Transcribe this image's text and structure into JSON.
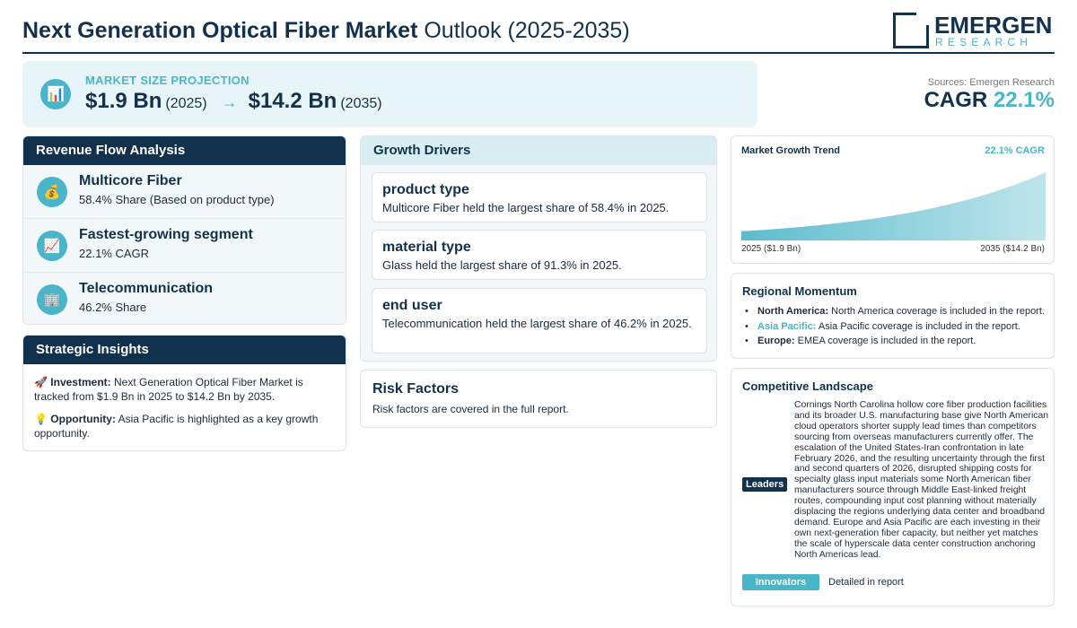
{
  "header": {
    "title_bold": "Next Generation Optical Fiber Market",
    "title_rest": " Outlook (2025-2035)",
    "logo_word": "EMERGEN",
    "logo_sub": "RESEARCH"
  },
  "hero": {
    "label": "MARKET SIZE PROJECTION",
    "icon": "bar-chart-icon",
    "start_value": "$1.9 Bn",
    "start_year": "(2025)",
    "arrow": "→",
    "end_value": "$14.2 Bn",
    "end_year": "(2035)"
  },
  "summary": {
    "sources": "Sources: Emergen Research",
    "cagr_label": "CAGR",
    "cagr_value": "22.1%"
  },
  "revenue_flow": {
    "title": "Revenue Flow Analysis",
    "items": [
      {
        "icon": "money-bag-icon",
        "glyph": "💰",
        "title": "Multicore Fiber",
        "subtitle": "58.4% Share (Based on product type)"
      },
      {
        "icon": "trend-up-icon",
        "glyph": "📈",
        "title": "Fastest-growing segment",
        "subtitle": "22.1% CAGR"
      },
      {
        "icon": "office-building-icon",
        "glyph": "🏢",
        "title": "Telecommunication",
        "subtitle": "46.2% Share"
      }
    ]
  },
  "strategic_insights": {
    "title": "Strategic Insights",
    "investment_label": "Investment:",
    "investment_text": " Next Generation Optical Fiber Market is tracked from $1.9 Bn in 2025 to $14.2 Bn by 2035.",
    "opportunity_label": "Opportunity:",
    "opportunity_text": " Asia Pacific is highlighted as a key growth opportunity."
  },
  "growth_drivers": {
    "title": "Growth Drivers",
    "items": [
      {
        "title": "product type",
        "text": "Multicore Fiber held the largest share of 58.4% in 2025."
      },
      {
        "title": "material type",
        "text": "Glass held the largest share of 91.3% in 2025."
      },
      {
        "title": "end user",
        "text": "Telecommunication held the largest share of 46.2% in 2025."
      }
    ]
  },
  "risk_factors": {
    "title": "Risk Factors",
    "text": "Risk factors are covered in the full report."
  },
  "market_trend": {
    "title": "Market Growth Trend",
    "cagr": "22.1% CAGR",
    "start_label": "2025 ($1.9 Bn)",
    "end_label": "2035 ($14.2 Bn)",
    "fill_color": "#4ab5c8"
  },
  "chart_data": {
    "type": "area",
    "x": [
      2025,
      2035
    ],
    "series": [
      {
        "values": [
          1.9,
          14.2
        ]
      }
    ],
    "title": "Market Growth Trend",
    "xlabel": "",
    "ylabel": "",
    "grid": false
  },
  "regional": {
    "title": "Regional Momentum",
    "items": [
      {
        "region": "North America:",
        "text": " North America coverage is included in the report."
      },
      {
        "region": "Asia Pacific:",
        "text": " Asia Pacific coverage is included in the report."
      },
      {
        "region": "Europe:",
        "text": " EMEA coverage is included in the report."
      }
    ]
  },
  "competitive": {
    "title": "Competitive Landscape",
    "leaders_label": "Leaders",
    "leaders_text": "Cornings North Carolina hollow core fiber production facilities and its broader U.S. manufacturing base give North American cloud operators shorter supply lead times than competitors sourcing from overseas manufacturers currently offer. The escalation of the United States-Iran confrontation in late February 2026, and the resulting uncertainty through the first and second quarters of 2026, disrupted shipping costs for specialty glass input materials some North American fiber manufacturers source through Middle East-linked freight routes, compounding input cost planning without materially displacing the regions underlying data center and broadband demand. Europe and Asia Pacific are each investing in their own next-generation fiber capacity, but neither yet matches the scale of hyperscale data center construction anchoring North Americas lead.",
    "innovators_label": "Innovators",
    "innovators_text": "Detailed in report"
  },
  "colors": {
    "navy": "#12314d",
    "accent": "#4ab5c8",
    "panel": "#e8f5f8"
  }
}
